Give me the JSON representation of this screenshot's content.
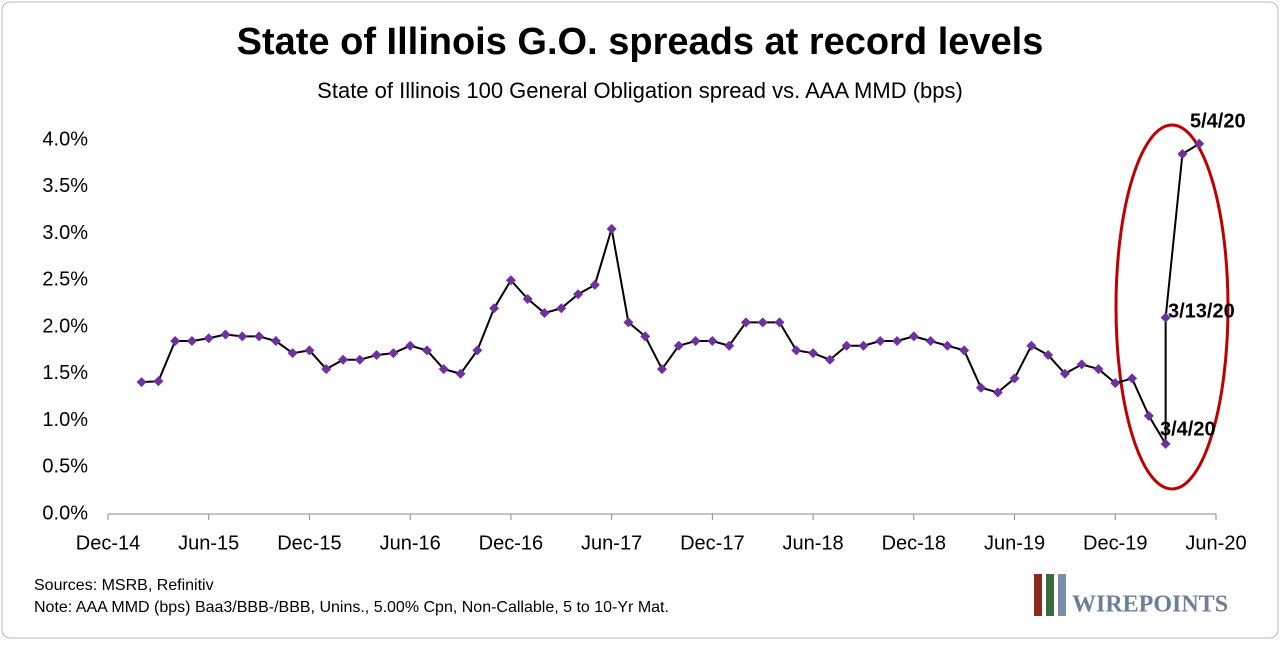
{
  "chart_data": {
    "type": "line",
    "title": "State of Illinois G.O. spreads at record levels",
    "subtitle": "State of Illinois 100 General Obligation spread vs. AAA MMD (bps)",
    "x": [
      "2015-02",
      "2015-03",
      "2015-04",
      "2015-05",
      "2015-06",
      "2015-07",
      "2015-08",
      "2015-09",
      "2015-10",
      "2015-11",
      "2015-12",
      "2016-01",
      "2016-02",
      "2016-03",
      "2016-04",
      "2016-05",
      "2016-06",
      "2016-07",
      "2016-08",
      "2016-09",
      "2016-10",
      "2016-11",
      "2016-12",
      "2017-01",
      "2017-02",
      "2017-03",
      "2017-04",
      "2017-05",
      "2017-06",
      "2017-07",
      "2017-08",
      "2017-09",
      "2017-10",
      "2017-11",
      "2017-12",
      "2018-01",
      "2018-02",
      "2018-03",
      "2018-04",
      "2018-05",
      "2018-06",
      "2018-07",
      "2018-08",
      "2018-09",
      "2018-10",
      "2018-11",
      "2018-12",
      "2019-01",
      "2019-02",
      "2019-03",
      "2019-04",
      "2019-05",
      "2019-06",
      "2019-07",
      "2019-08",
      "2019-09",
      "2019-10",
      "2019-11",
      "2019-12",
      "2020-01",
      "2020-02",
      "2020-03",
      "2020-03",
      "2020-04",
      "2020-05"
    ],
    "series": [
      {
        "color": "#7030a0",
        "line_color": "#000000",
        "values": [
          1.41,
          1.42,
          1.85,
          1.85,
          1.88,
          1.92,
          1.9,
          1.9,
          1.85,
          1.72,
          1.75,
          1.55,
          1.65,
          1.65,
          1.7,
          1.72,
          1.8,
          1.75,
          1.55,
          1.5,
          1.75,
          2.2,
          2.5,
          2.3,
          2.15,
          2.2,
          2.35,
          2.45,
          3.05,
          2.05,
          1.9,
          1.55,
          1.8,
          1.85,
          1.85,
          1.8,
          2.05,
          2.05,
          2.05,
          1.75,
          1.72,
          1.65,
          1.8,
          1.8,
          1.85,
          1.85,
          1.9,
          1.85,
          1.8,
          1.75,
          1.35,
          1.3,
          1.45,
          1.8,
          1.7,
          1.5,
          1.6,
          1.55,
          1.4,
          1.45,
          1.05,
          0.75,
          2.1,
          3.85,
          3.96
        ]
      }
    ],
    "xlim": [
      "2014-12",
      "2020-06"
    ],
    "xticks": [
      {
        "value": "2014-12",
        "label": "Dec-14"
      },
      {
        "value": "2015-06",
        "label": "Jun-15"
      },
      {
        "value": "2015-12",
        "label": "Dec-15"
      },
      {
        "value": "2016-06",
        "label": "Jun-16"
      },
      {
        "value": "2016-12",
        "label": "Dec-16"
      },
      {
        "value": "2017-06",
        "label": "Jun-17"
      },
      {
        "value": "2017-12",
        "label": "Dec-17"
      },
      {
        "value": "2018-06",
        "label": "Jun-18"
      },
      {
        "value": "2018-12",
        "label": "Dec-18"
      },
      {
        "value": "2019-06",
        "label": "Jun-19"
      },
      {
        "value": "2019-12",
        "label": "Dec-19"
      },
      {
        "value": "2020-06",
        "label": "Jun-20"
      }
    ],
    "ylim": [
      0,
      4
    ],
    "yticks": [
      {
        "value": 0,
        "label": "0.0%"
      },
      {
        "value": 0.5,
        "label": "0.5%"
      },
      {
        "value": 1,
        "label": "1.0%"
      },
      {
        "value": 1.5,
        "label": "1.5%"
      },
      {
        "value": 2,
        "label": "2.0%"
      },
      {
        "value": 2.5,
        "label": "2.5%"
      },
      {
        "value": 3,
        "label": "3.0%"
      },
      {
        "value": 3.5,
        "label": "3.5%"
      },
      {
        "value": 4,
        "label": "4.0%"
      }
    ],
    "grid": false,
    "annotations": [
      "5/4/20",
      "3/13/20",
      "3/4/20"
    ],
    "sources": "Sources: MSRB, Refinitiv",
    "note": "Note: AAA MMD (bps) Baa3/BBB-/BBB, Unins., 5.00% Cpn, Non-Callable, 5 to 10-Yr Mat.",
    "logo": "WIREPOINTS"
  }
}
